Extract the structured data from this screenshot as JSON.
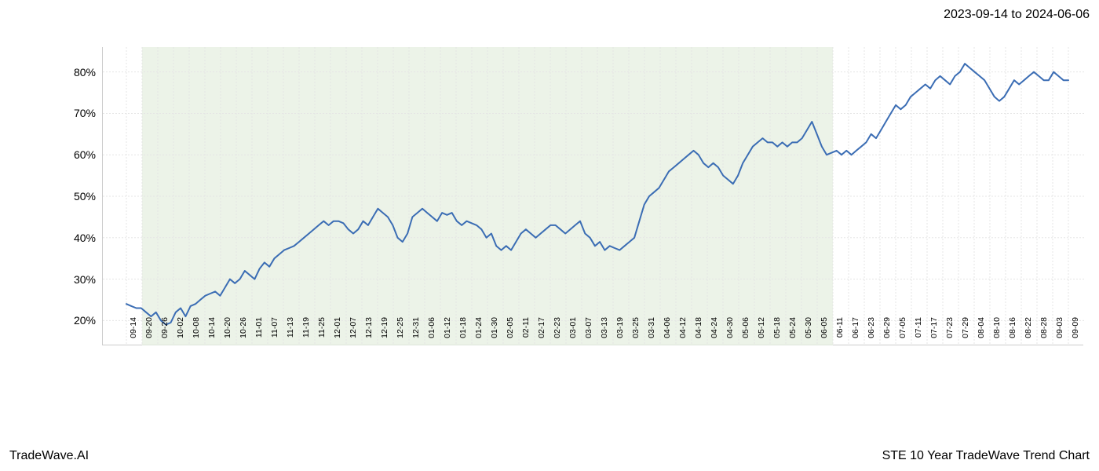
{
  "header": {
    "date_range": "2023-09-14 to 2024-06-06"
  },
  "footer": {
    "branding": "TradeWave.AI",
    "title": "STE 10 Year TradeWave Trend Chart"
  },
  "chart": {
    "type": "line",
    "background_color": "#ffffff",
    "grid_color": "#e5e5e5",
    "grid_dash": "2,2",
    "axis_color": "#cccccc",
    "shaded_region": {
      "fill": "#e5efe0",
      "opacity": 0.75,
      "x_start_index": 1,
      "x_end_index": 45
    },
    "line": {
      "color": "#3b6db4",
      "width": 2
    },
    "y_axis": {
      "min": 14,
      "max": 86,
      "ticks": [
        20,
        30,
        40,
        50,
        60,
        70,
        80
      ],
      "tick_suffix": "%",
      "label_fontsize": 14
    },
    "x_axis": {
      "label_fontsize": 10,
      "rotation": -90,
      "labels": [
        "09-14",
        "09-20",
        "09-26",
        "10-02",
        "10-08",
        "10-14",
        "10-20",
        "10-26",
        "11-01",
        "11-07",
        "11-13",
        "11-19",
        "11-25",
        "12-01",
        "12-07",
        "12-13",
        "12-19",
        "12-25",
        "12-31",
        "01-06",
        "01-12",
        "01-18",
        "01-24",
        "01-30",
        "02-05",
        "02-11",
        "02-17",
        "02-23",
        "03-01",
        "03-07",
        "03-13",
        "03-19",
        "03-25",
        "03-31",
        "04-06",
        "04-12",
        "04-18",
        "04-24",
        "04-30",
        "05-06",
        "05-12",
        "05-18",
        "05-24",
        "05-30",
        "06-05",
        "06-11",
        "06-17",
        "06-23",
        "06-29",
        "07-05",
        "07-11",
        "07-17",
        "07-23",
        "07-29",
        "08-04",
        "08-10",
        "08-16",
        "08-22",
        "08-28",
        "09-03",
        "09-09"
      ]
    },
    "series": {
      "values": [
        24,
        23.5,
        23,
        23,
        22,
        21,
        22,
        20,
        19,
        19.5,
        22,
        23,
        21,
        23.5,
        24,
        25,
        26,
        26.5,
        27,
        26,
        28,
        30,
        29,
        30,
        32,
        31,
        30,
        32.5,
        34,
        33,
        35,
        36,
        37,
        37.5,
        38,
        39,
        40,
        41,
        42,
        43,
        44,
        43,
        44,
        44,
        43.5,
        42,
        41,
        42,
        44,
        43,
        45,
        47,
        46,
        45,
        43,
        40,
        39,
        41,
        45,
        46,
        47,
        46,
        45,
        44,
        46,
        45.5,
        46,
        44,
        43,
        44,
        43.5,
        43,
        42,
        40,
        41,
        38,
        37,
        38,
        37,
        39,
        41,
        42,
        41,
        40,
        41,
        42,
        43,
        43,
        42,
        41,
        42,
        43,
        44,
        41,
        40,
        38,
        39,
        37,
        38,
        37.5,
        37,
        38,
        39,
        40,
        44,
        48,
        50,
        51,
        52,
        54,
        56,
        57,
        58,
        59,
        60,
        61,
        60,
        58,
        57,
        58,
        57,
        55,
        54,
        53,
        55,
        58,
        60,
        62,
        63,
        64,
        63,
        63,
        62,
        63,
        62,
        63,
        63,
        64,
        66,
        68,
        65,
        62,
        60,
        60.5,
        61,
        60,
        61,
        60,
        61,
        62,
        63,
        65,
        64,
        66,
        68,
        70,
        72,
        71,
        72,
        74,
        75,
        76,
        77,
        76,
        78,
        79,
        78,
        77,
        79,
        80,
        82,
        81,
        80,
        79,
        78,
        76,
        74,
        73,
        74,
        76,
        78,
        77,
        78,
        79,
        80,
        79,
        78,
        78,
        80,
        79,
        78,
        78
      ]
    }
  }
}
